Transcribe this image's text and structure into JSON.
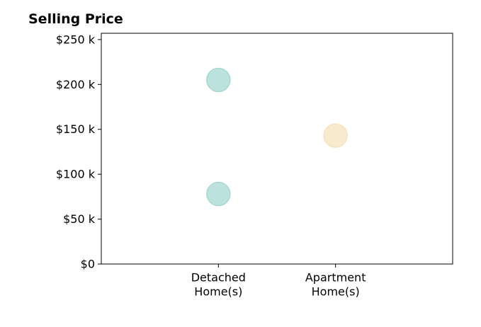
{
  "chart_data": {
    "type": "scatter",
    "title": "Selling Price",
    "xlabel": "",
    "ylabel": "",
    "categories": [
      [
        "Detached",
        "Home(s)"
      ],
      [
        "Apartment",
        "Home(s)"
      ]
    ],
    "points": [
      {
        "category": 0,
        "value": 205000,
        "color": "#a6d8d1"
      },
      {
        "category": 0,
        "value": 78000,
        "color": "#a6d8d1"
      },
      {
        "category": 1,
        "value": 143000,
        "color": "#f6e3bd"
      }
    ],
    "y_ticks": [
      {
        "value": 0,
        "label": "$0"
      },
      {
        "value": 50000,
        "label": "$50 k"
      },
      {
        "value": 100000,
        "label": "$100 k"
      },
      {
        "value": 150000,
        "label": "$150 k"
      },
      {
        "value": 200000,
        "label": "$200 k"
      },
      {
        "value": 250000,
        "label": "$250 k"
      }
    ],
    "ylim": [
      0,
      257000
    ],
    "xlim": [
      -1,
      2
    ],
    "grid": false,
    "legend": "none",
    "colors": {
      "detached": "#a6d8d1",
      "apartment": "#f6e3bd",
      "axis": "#000000"
    }
  }
}
